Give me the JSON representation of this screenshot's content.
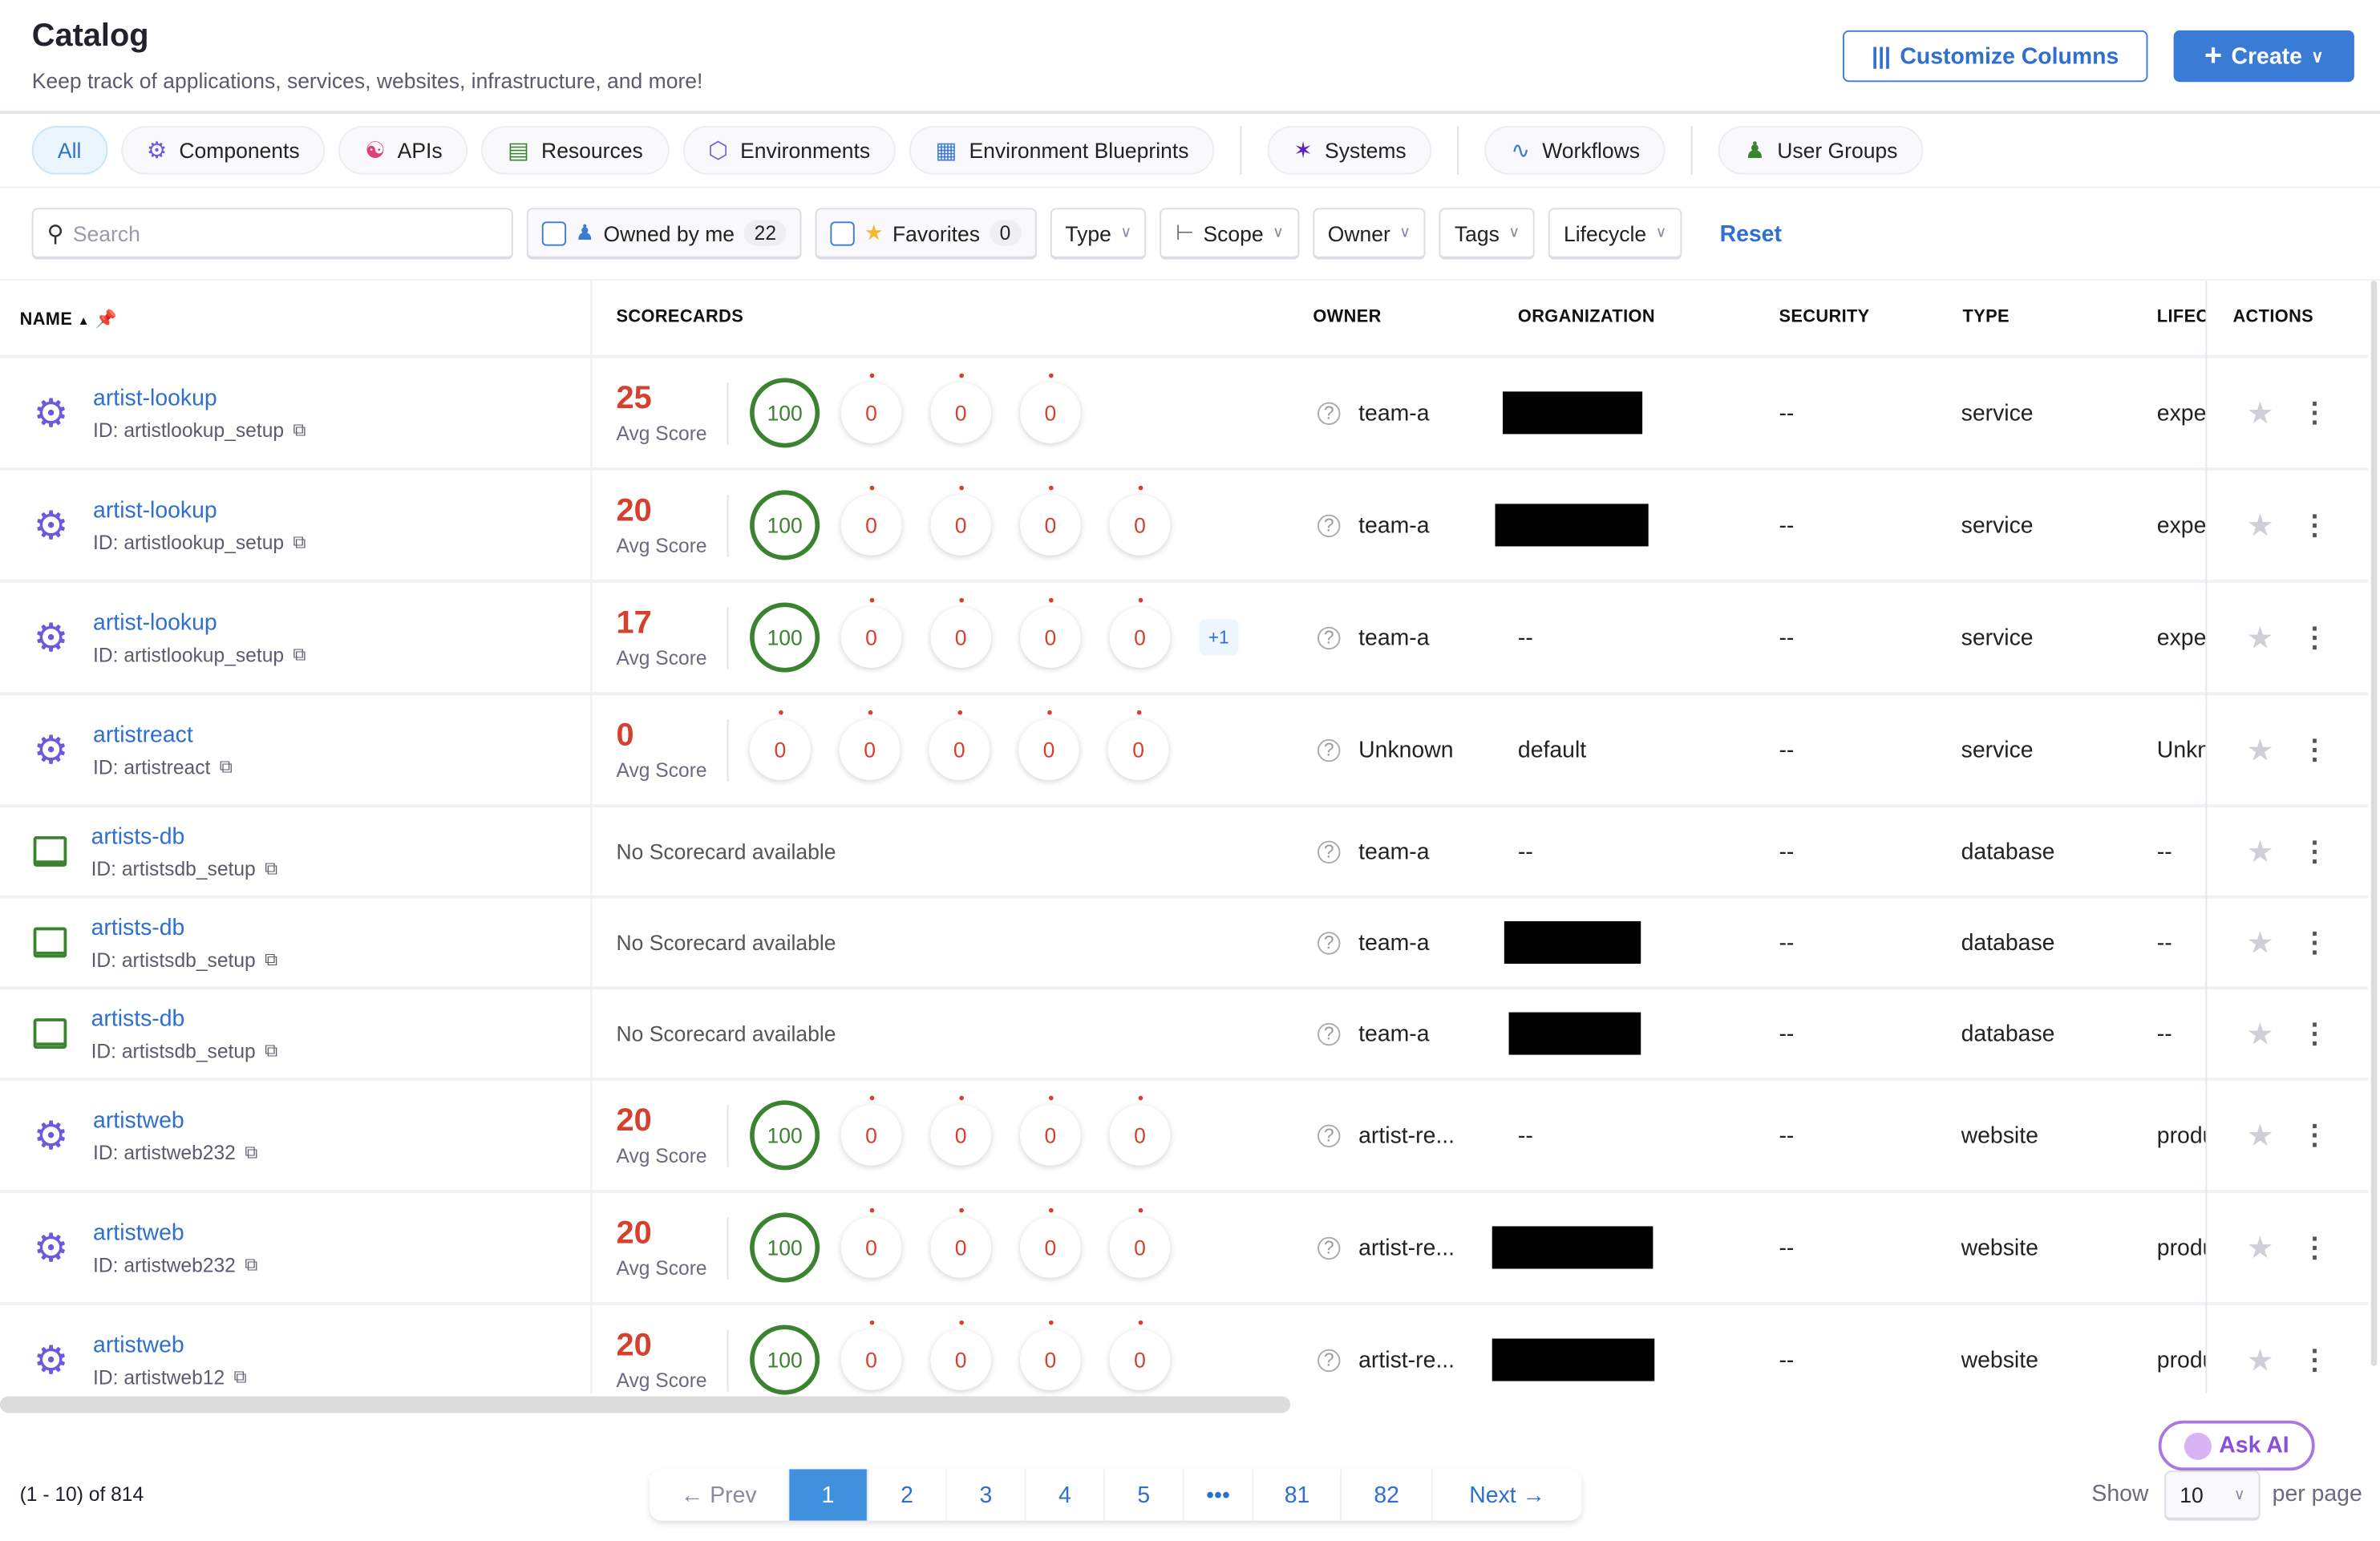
{
  "header": {
    "title": "Catalog",
    "subtitle": "Keep track of applications, services, websites, infrastructure, and more!",
    "customize_label": "Customize Columns",
    "create_label": "Create"
  },
  "tabs": [
    {
      "label": "All",
      "icon": "all",
      "active": true
    },
    {
      "label": "Components",
      "icon": "gear-icon"
    },
    {
      "label": "APIs",
      "icon": "webhook-icon"
    },
    {
      "label": "Resources",
      "icon": "server-icon"
    },
    {
      "label": "Environments",
      "icon": "hexagons-icon"
    },
    {
      "label": "Environment Blueprints",
      "icon": "blueprint-icon"
    },
    {
      "label": "Systems",
      "icon": "systems-icon",
      "sep": true
    },
    {
      "label": "Workflows",
      "icon": "workflow-icon",
      "sep": true
    },
    {
      "label": "User Groups",
      "icon": "user-groups-icon",
      "sep": true
    }
  ],
  "filters": {
    "search_placeholder": "Search",
    "owned_label": "Owned by me",
    "owned_count": "22",
    "fav_label": "Favorites",
    "fav_count": "0",
    "type": "Type",
    "scope": "Scope",
    "owner": "Owner",
    "tags": "Tags",
    "lifecycle": "Lifecycle",
    "reset": "Reset"
  },
  "columns": {
    "name": "NAME",
    "scorecards": "SCORECARDS",
    "owner": "OWNER",
    "organization": "ORGANIZATION",
    "security": "SECURITY",
    "type": "TYPE",
    "lifecycle": "LIFECYCLE",
    "actions": "ACTIONS"
  },
  "avg_label": "Avg Score",
  "no_scorecard": "No Scorecard available",
  "rows": [
    {
      "name": "artist-lookup",
      "id": "ID: artistlookup_setup",
      "icon": "gear",
      "avg": "25",
      "scores": [
        "100",
        "0",
        "0",
        "0"
      ],
      "owner": "team-a",
      "org": null,
      "security": "--",
      "type": "service",
      "lifecycle": "experimental"
    },
    {
      "name": "artist-lookup",
      "id": "ID: artistlookup_setup",
      "icon": "gear",
      "avg": "20",
      "scores": [
        "100",
        "0",
        "0",
        "0",
        "0"
      ],
      "owner": "team-a",
      "org": null,
      "security": "--",
      "type": "service",
      "lifecycle": "experimental"
    },
    {
      "name": "artist-lookup",
      "id": "ID: artistlookup_setup",
      "icon": "gear",
      "avg": "17",
      "scores": [
        "100",
        "0",
        "0",
        "0",
        "0"
      ],
      "extra": "+1",
      "owner": "team-a",
      "org": "--",
      "security": "--",
      "type": "service",
      "lifecycle": "experimental"
    },
    {
      "name": "artistreact",
      "id": "ID: artistreact",
      "icon": "gear",
      "avg": "0",
      "scores": [
        "0",
        "0",
        "0",
        "0",
        "0"
      ],
      "owner": "Unknown",
      "org": "default",
      "security": "--",
      "type": "service",
      "lifecycle": "Unknown"
    },
    {
      "name": "artists-db",
      "id": "ID: artistsdb_setup",
      "icon": "db",
      "avg": null,
      "owner": "team-a",
      "org": "--",
      "security": "--",
      "type": "database",
      "lifecycle": "--"
    },
    {
      "name": "artists-db",
      "id": "ID: artistsdb_setup",
      "icon": "db",
      "avg": null,
      "owner": "team-a",
      "org": null,
      "security": "--",
      "type": "database",
      "lifecycle": "--"
    },
    {
      "name": "artists-db",
      "id": "ID: artistsdb_setup",
      "icon": "db",
      "avg": null,
      "owner": "team-a",
      "org": null,
      "security": "--",
      "type": "database",
      "lifecycle": "--"
    },
    {
      "name": "artistweb",
      "id": "ID: artistweb232",
      "icon": "gear",
      "avg": "20",
      "scores": [
        "100",
        "0",
        "0",
        "0",
        "0"
      ],
      "owner": "artist-re...",
      "org": "--",
      "security": "--",
      "type": "website",
      "lifecycle": "production"
    },
    {
      "name": "artistweb",
      "id": "ID: artistweb232",
      "icon": "gear",
      "avg": "20",
      "scores": [
        "100",
        "0",
        "0",
        "0",
        "0"
      ],
      "owner": "artist-re...",
      "org": null,
      "security": "--",
      "type": "website",
      "lifecycle": "production"
    },
    {
      "name": "artistweb",
      "id": "ID: artistweb12",
      "icon": "gear",
      "avg": "20",
      "scores": [
        "100",
        "0",
        "0",
        "0",
        "0"
      ],
      "owner": "artist-re...",
      "org": null,
      "security": "--",
      "type": "website",
      "lifecycle": "production"
    }
  ],
  "pagination": {
    "range": "(1 - 10) of 814",
    "prev": "Prev",
    "next": "Next",
    "pages": [
      "1",
      "2",
      "3",
      "4",
      "5",
      "•••",
      "81",
      "82"
    ],
    "current": "1",
    "show": "Show",
    "per_page_value": "10",
    "per_page": "per page",
    "ask_ai": "Ask AI"
  },
  "colors": {
    "accent": "#3a7bd5",
    "score_good": "#3b8330",
    "score_bad": "#d6402f"
  }
}
